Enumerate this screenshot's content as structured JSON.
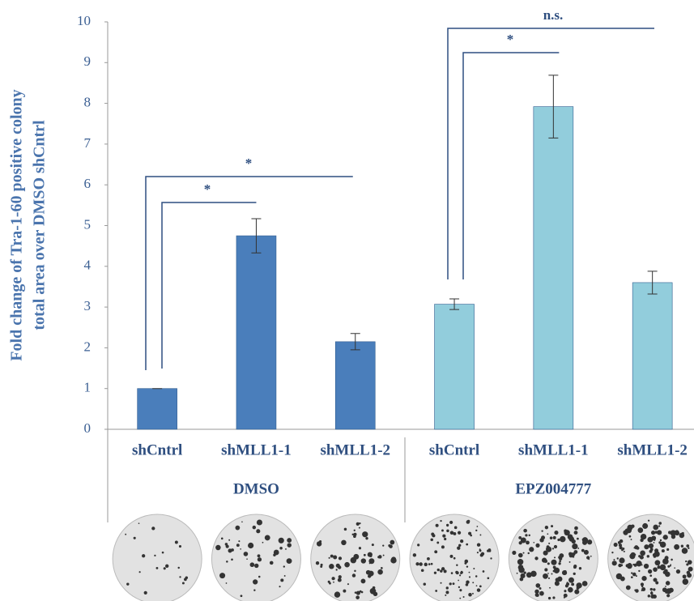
{
  "chart_data": {
    "type": "bar",
    "y_label_lines": [
      "Fold change of Tra-1-60 positive colony",
      "total area over DMSO shCntrl"
    ],
    "groups": [
      {
        "name": "DMSO",
        "color": "#4a7ebb",
        "categories": [
          "shCntrl",
          "shMLL1-1",
          "shMLL1-2"
        ],
        "values": [
          1.0,
          4.75,
          2.15
        ],
        "errors": [
          0,
          0.42,
          0.2
        ]
      },
      {
        "name": "EPZ004777",
        "color": "#92cddc",
        "categories": [
          "shCntrl",
          "shMLL1-1",
          "shMLL1-2"
        ],
        "values": [
          3.07,
          7.92,
          3.6
        ],
        "errors": [
          0.13,
          0.77,
          0.28
        ]
      }
    ],
    "annotations": [
      "*",
      "*",
      "*",
      "n.s."
    ],
    "ylim": [
      0,
      10
    ],
    "yticks": [
      0,
      1,
      2,
      3,
      4,
      5,
      6,
      7,
      8,
      9,
      10
    ]
  }
}
